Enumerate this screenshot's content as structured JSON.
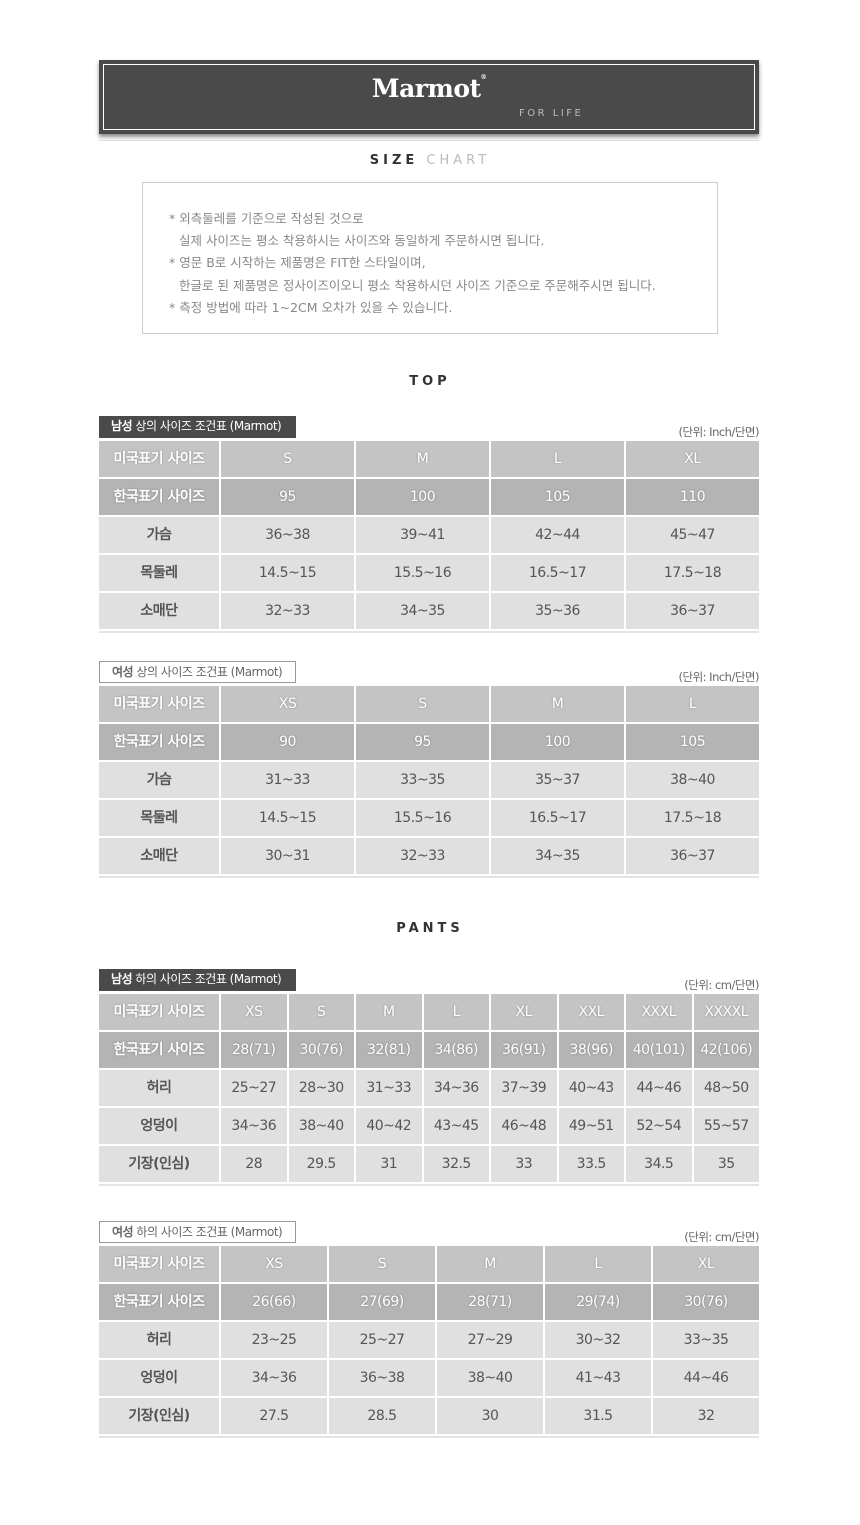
{
  "brand": {
    "logo": "Marmot",
    "tagline": "FOR LIFE"
  },
  "title": {
    "part1": "SIZE",
    "part2": "CHART"
  },
  "notes": [
    "* 외측둘레를 기준으로 작성된 것으로",
    "실제 사이즈는 평소 착용하시는 사이즈와 동일하게 주문하시면 됩니다.",
    "* 영문 B로 시작하는 제품명은 FIT한 스타일이며,",
    "한글로 된 제품명은 정사이즈이오니 평소 착용하시던 사이즈 기준으로 주문해주시면 됩니다.",
    "* 측정 방법에 따라 1~2CM 오차가 있을 수 있습니다."
  ],
  "sections": {
    "top": "TOP",
    "pants": "PANTS"
  },
  "tables": [
    {
      "label_bold": "남성",
      "label": " 상의 사이즈 조건표 (Marmot)",
      "style": "dark",
      "unit": "(단위: Inch/단면)",
      "rows": [
        [
          "미국표기 사이즈",
          "S",
          "M",
          "L",
          "XL"
        ],
        [
          "한국표기 사이즈",
          "95",
          "100",
          "105",
          "110"
        ],
        [
          "가슴",
          "36~38",
          "39~41",
          "42~44",
          "45~47"
        ],
        [
          "목둘레",
          "14.5~15",
          "15.5~16",
          "16.5~17",
          "17.5~18"
        ],
        [
          "소매단",
          "32~33",
          "34~35",
          "35~36",
          "36~37"
        ]
      ]
    },
    {
      "label_bold": "여성",
      "label": " 상의 사이즈 조건표 (Marmot)",
      "style": "light",
      "unit": "(단위: Inch/단면)",
      "rows": [
        [
          "미국표기 사이즈",
          "XS",
          "S",
          "M",
          "L"
        ],
        [
          "한국표기 사이즈",
          "90",
          "95",
          "100",
          "105"
        ],
        [
          "가슴",
          "31~33",
          "33~35",
          "35~37",
          "38~40"
        ],
        [
          "목둘레",
          "14.5~15",
          "15.5~16",
          "16.5~17",
          "17.5~18"
        ],
        [
          "소매단",
          "30~31",
          "32~33",
          "34~35",
          "36~37"
        ]
      ]
    },
    {
      "label_bold": "남성",
      "label": " 하의 사이즈 조건표 (Marmot)",
      "style": "dark",
      "unit": "(단위: cm/단면)",
      "rows": [
        [
          "미국표기 사이즈",
          "XS",
          "S",
          "M",
          "L",
          "XL",
          "XXL",
          "XXXL",
          "XXXXL"
        ],
        [
          "한국표기 사이즈",
          "28(71)",
          "30(76)",
          "32(81)",
          "34(86)",
          "36(91)",
          "38(96)",
          "40(101)",
          "42(106)"
        ],
        [
          "허리",
          "25~27",
          "28~30",
          "31~33",
          "34~36",
          "37~39",
          "40~43",
          "44~46",
          "48~50"
        ],
        [
          "엉덩이",
          "34~36",
          "38~40",
          "40~42",
          "43~45",
          "46~48",
          "49~51",
          "52~54",
          "55~57"
        ],
        [
          "기장(인심)",
          "28",
          "29.5",
          "31",
          "32.5",
          "33",
          "33.5",
          "34.5",
          "35"
        ]
      ]
    },
    {
      "label_bold": "여성",
      "label": " 하의 사이즈 조건표 (Marmot)",
      "style": "light",
      "unit": "(단위: cm/단면)",
      "rows": [
        [
          "미국표기 사이즈",
          "XS",
          "S",
          "M",
          "L",
          "XL"
        ],
        [
          "한국표기 사이즈",
          "26(66)",
          "27(69)",
          "28(71)",
          "29(74)",
          "30(76)"
        ],
        [
          "허리",
          "23~25",
          "25~27",
          "27~29",
          "30~32",
          "33~35"
        ],
        [
          "엉덩이",
          "34~36",
          "36~38",
          "38~40",
          "41~43",
          "44~46"
        ],
        [
          "기장(인심)",
          "27.5",
          "28.5",
          "30",
          "31.5",
          "32"
        ]
      ]
    }
  ]
}
